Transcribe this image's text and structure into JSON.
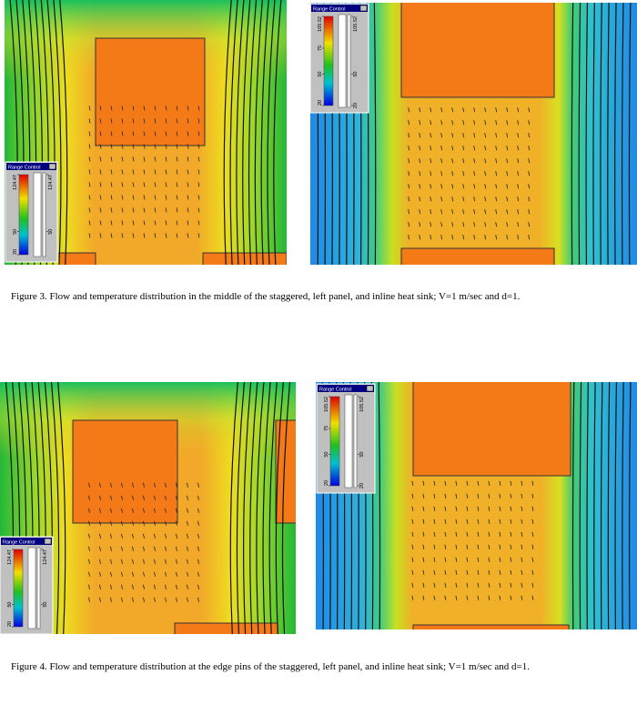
{
  "figures": [
    {
      "panels": [
        {
          "range_control": {
            "title": "Range Control",
            "left_ticks": [
              124.47,
              50,
              20
            ],
            "right_ticks": [
              124.47,
              50
            ]
          }
        },
        {
          "range_control": {
            "title": "Range Control",
            "left_ticks": [
              105.52,
              75,
              50,
              20
            ],
            "right_ticks": [
              105.52,
              50,
              20
            ]
          }
        }
      ],
      "caption": "Figure 3. Flow and temperature distribution in the middle of the staggered, left panel, and inline heat sink; V=1 m/sec and d=1."
    },
    {
      "panels": [
        {
          "range_control": {
            "title": "Range Control",
            "left_ticks": [
              124.47,
              50,
              20
            ],
            "right_ticks": [
              124.47,
              50
            ]
          }
        },
        {
          "range_control": {
            "title": "Range Control",
            "left_ticks": [
              105.52,
              75,
              50,
              20
            ],
            "right_ticks": [
              105.52,
              50,
              20
            ]
          }
        }
      ],
      "caption": "Figure 4. Flow and temperature distribution at the edge pins of the staggered, left panel, and inline heat sink; V=1 m/sec and d=1."
    }
  ]
}
